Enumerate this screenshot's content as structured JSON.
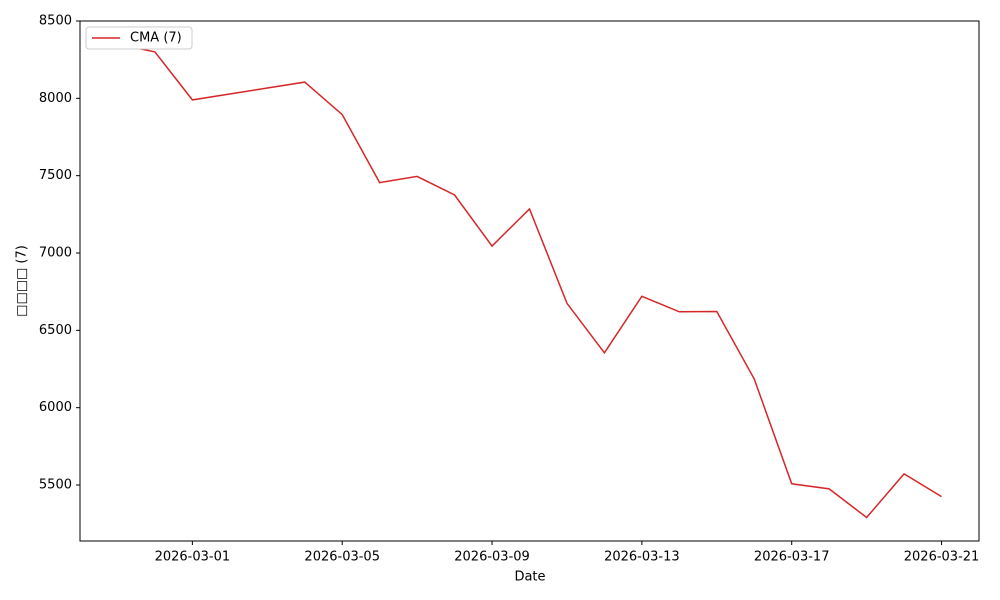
{
  "chart_data": {
    "type": "line",
    "x_label": "Date",
    "y_label": "□□□□ (7)",
    "x": [
      "2026-02-27",
      "2026-02-28",
      "2026-03-01",
      "2026-03-04",
      "2026-03-05",
      "2026-03-06",
      "2026-03-07",
      "2026-03-08",
      "2026-03-09",
      "2026-03-10",
      "2026-03-11",
      "2026-03-12",
      "2026-03-13",
      "2026-03-14",
      "2026-03-15",
      "2026-03-16",
      "2026-03-17",
      "2026-03-18",
      "2026-03-19",
      "2026-03-20",
      "2026-03-21"
    ],
    "series": [
      {
        "name": "CMA (7)",
        "color": "#d62728",
        "values": [
          8350,
          8300,
          7990,
          8105,
          7895,
          7455,
          7495,
          7375,
          7045,
          7285,
          6675,
          6355,
          6720,
          6620,
          6622,
          6185,
          5508,
          5475,
          5290,
          5572,
          5425
        ]
      }
    ],
    "xlim": [
      "2026-02-26",
      "2026-03-22"
    ],
    "xticks": [
      "2026-03-01",
      "2026-03-05",
      "2026-03-09",
      "2026-03-13",
      "2026-03-17",
      "2026-03-21"
    ],
    "ylim": [
      5138,
      8500
    ],
    "yticks": [
      5500,
      6000,
      6500,
      7000,
      7500,
      8000,
      8500
    ],
    "grid": false,
    "legend": "upper left"
  }
}
